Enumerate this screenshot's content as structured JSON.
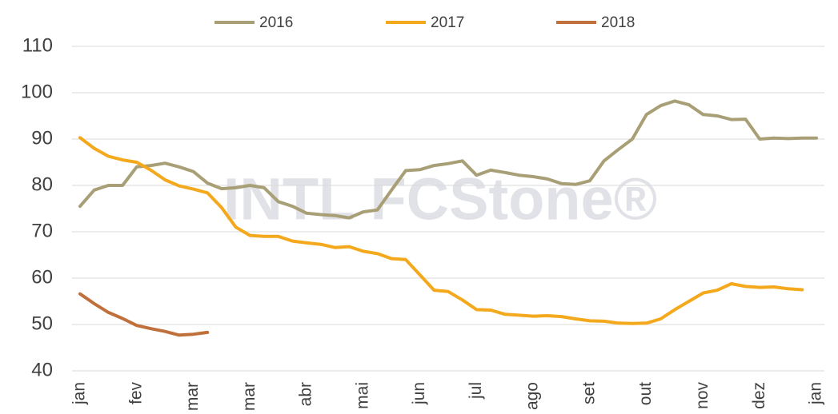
{
  "chart_data": {
    "type": "line",
    "watermark": "INTL FCStone®",
    "categories": [
      "jan",
      null,
      null,
      null,
      "fev",
      null,
      null,
      null,
      "mar",
      null,
      null,
      null,
      "mar",
      null,
      null,
      null,
      "abr",
      null,
      null,
      null,
      "mai",
      null,
      null,
      null,
      "jun",
      null,
      null,
      null,
      "jul",
      null,
      null,
      null,
      "ago",
      null,
      null,
      null,
      "set",
      null,
      null,
      null,
      "out",
      null,
      null,
      null,
      "nov",
      null,
      null,
      null,
      "dez",
      null,
      null,
      null,
      "jan"
    ],
    "series": [
      {
        "name": "2016",
        "color": "#a89f76",
        "values": [
          75.5,
          79,
          80,
          80,
          84,
          84.3,
          84.8,
          84,
          83,
          80.5,
          79.3,
          79.5,
          80,
          79.5,
          76.5,
          75.5,
          74,
          73.7,
          73.5,
          73,
          74.3,
          74.7,
          79,
          83.2,
          83.4,
          84.3,
          84.7,
          85.3,
          82.2,
          83.3,
          82.8,
          82.2,
          81.9,
          81.4,
          80.4,
          80.2,
          81,
          85.3,
          87.7,
          90,
          95.3,
          97.2,
          98.2,
          97.4,
          95.3,
          95,
          94.2,
          94.3,
          90,
          90.2,
          90.1,
          90.2,
          90.2
        ]
      },
      {
        "name": "2017",
        "color": "#f4a81c",
        "values": [
          90.3,
          88,
          86.3,
          85.5,
          85,
          83.3,
          81.2,
          79.9,
          79.2,
          78.4,
          75.2,
          71,
          69.2,
          69,
          69,
          68,
          67.6,
          67.3,
          66.6,
          66.8,
          65.8,
          65.3,
          64.2,
          64,
          60.7,
          57.4,
          57.1,
          55.3,
          53.2,
          53.1,
          52.2,
          52,
          51.8,
          51.9,
          51.7,
          51.2,
          50.8,
          50.7,
          50.3,
          50.2,
          50.3,
          51.2,
          53.2,
          55,
          56.8,
          57.4,
          58.8,
          58.2,
          58,
          58.1,
          57.7,
          57.5,
          null
        ]
      },
      {
        "name": "2018",
        "color": "#c0703a",
        "values": [
          56.6,
          54.5,
          52.6,
          51.3,
          49.8,
          49.1,
          48.5,
          47.7,
          47.9,
          48.3,
          null,
          null,
          null,
          null,
          null,
          null,
          null,
          null,
          null,
          null,
          null,
          null,
          null,
          null,
          null,
          null,
          null,
          null,
          null,
          null,
          null,
          null,
          null,
          null,
          null,
          null,
          null,
          null,
          null,
          null,
          null,
          null,
          null,
          null,
          null,
          null,
          null,
          null,
          null,
          null,
          null,
          null,
          null
        ]
      }
    ],
    "ylim": [
      40,
      110
    ],
    "yticks": [
      40,
      50,
      60,
      70,
      80,
      90,
      100,
      110
    ],
    "grid": true,
    "legend": "top"
  }
}
